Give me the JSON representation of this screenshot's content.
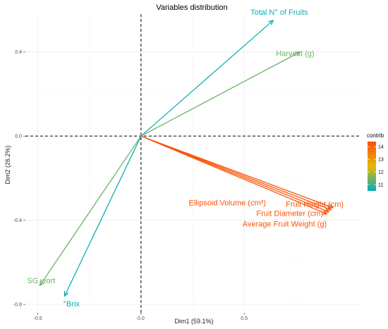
{
  "chart_data": {
    "type": "pca-biplot",
    "title": "Variables distribution",
    "xlabel": "Dim1 (59.1%)",
    "ylabel": "Dim2 (26.2%)",
    "xlim": [
      -0.56,
      1.06
    ],
    "ylim": [
      -0.84,
      0.58
    ],
    "xticks": [
      {
        "v": -0.5,
        "label": "-0.5"
      },
      {
        "v": 0.0,
        "label": "0.0"
      },
      {
        "v": 0.5,
        "label": "0.5"
      }
    ],
    "yticks": [
      {
        "v": 0.4,
        "label": "0.4"
      },
      {
        "v": 0.0,
        "label": "0.0"
      },
      {
        "v": -0.4,
        "label": "-0.4"
      },
      {
        "v": -0.8,
        "label": "-0.8"
      }
    ],
    "grid": true,
    "reference_lines": {
      "x": 0,
      "y": 0
    },
    "variables": [
      {
        "name": "Total N° of Fruits",
        "x": 0.64,
        "y": 0.55,
        "contrib": 10.6
      },
      {
        "name": "Harvest (g)",
        "x": 0.77,
        "y": 0.4,
        "contrib": 11.4
      },
      {
        "name": "Ellipsoid Volume (cm³)",
        "x": 0.93,
        "y": -0.34,
        "contrib": 14.3
      },
      {
        "name": "Fruit Height (cm)",
        "x": 0.92,
        "y": -0.35,
        "contrib": 14.3
      },
      {
        "name": "Fruit Diameter (cm)",
        "x": 0.91,
        "y": -0.36,
        "contrib": 14.3
      },
      {
        "name": "Average Fruit Weight (g)",
        "x": 0.9,
        "y": -0.37,
        "contrib": 14.3
      },
      {
        "name": "SG wort",
        "x": -0.49,
        "y": -0.71,
        "contrib": 11.4
      },
      {
        "name": "°Brix",
        "x": -0.37,
        "y": -0.76,
        "contrib": 10.6
      }
    ],
    "legend": {
      "title": "contrib",
      "position": "right",
      "range": [
        10.5,
        14.4
      ],
      "ticks": [
        {
          "v": 11,
          "label": "11"
        },
        {
          "v": 12,
          "label": "12"
        },
        {
          "v": 13,
          "label": "13"
        },
        {
          "v": 14,
          "label": "14"
        }
      ],
      "colors": [
        "#00AFBB",
        "#E7B800",
        "#FC4E07"
      ]
    }
  }
}
